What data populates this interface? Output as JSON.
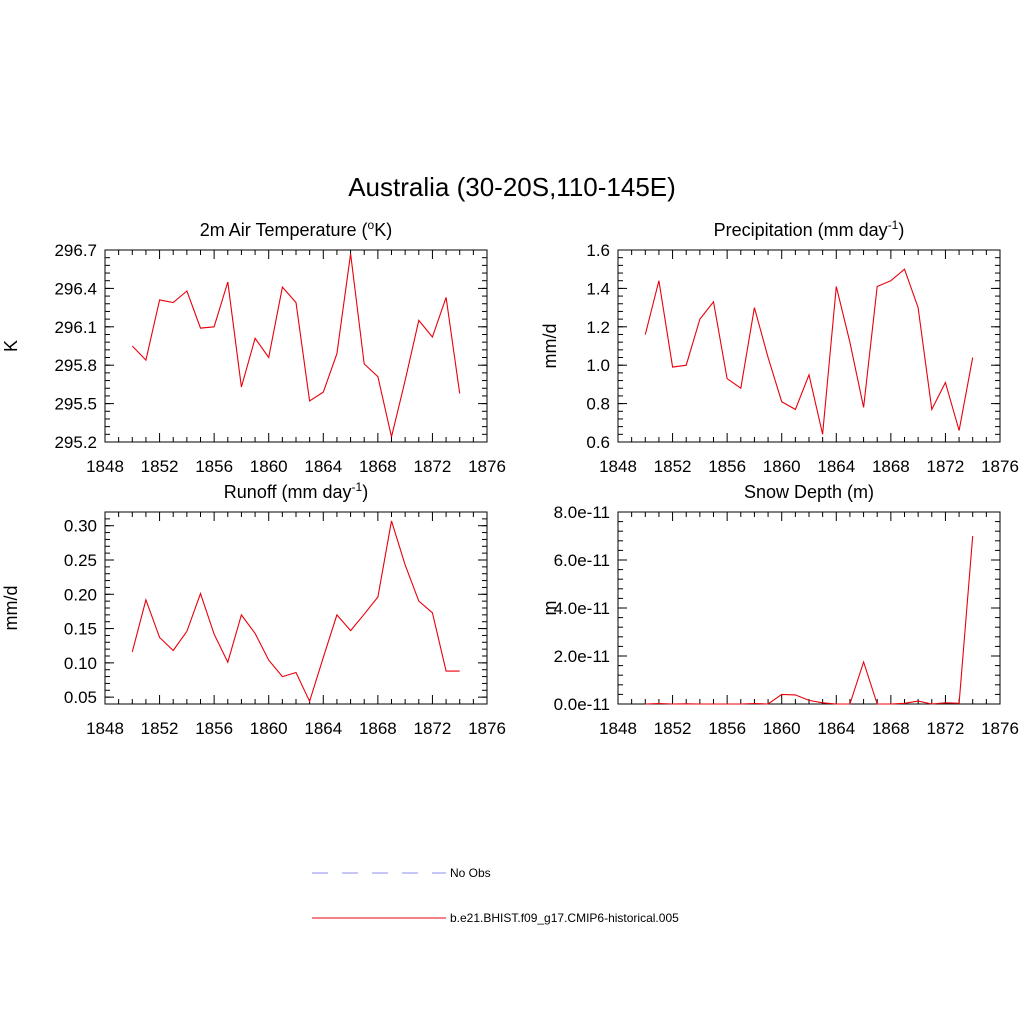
{
  "figure_title": "Australia (30-20S,110-145E)",
  "colors": {
    "model": "#e8000b",
    "obs": "#8c8cf0",
    "axis": "#000000"
  },
  "legend": {
    "obs_label": "No Obs",
    "model_label": "b.e21.BHIST.f09_g17.CMIP6-historical.005"
  },
  "chart_data": [
    {
      "type": "line",
      "title": "2m Air Temperature (",
      "title_sup": "o",
      "title_suffix": "K)",
      "ylabel": "K",
      "xlim": [
        1848,
        1876
      ],
      "ylim": [
        295.2,
        296.7
      ],
      "xticks": [
        "1848",
        "1852",
        "1856",
        "1860",
        "1864",
        "1868",
        "1872",
        "1876"
      ],
      "yticks": [
        "295.2",
        "295.5",
        "295.8",
        "296.1",
        "296.4",
        "296.7"
      ],
      "series": [
        {
          "x": [
            1850,
            1851,
            1852,
            1853,
            1854,
            1855,
            1856,
            1857,
            1858,
            1859,
            1860,
            1861,
            1862,
            1863,
            1864,
            1865,
            1866,
            1867,
            1868,
            1869,
            1870,
            1871,
            1872,
            1873,
            1874
          ],
          "values": [
            295.95,
            295.84,
            296.31,
            296.29,
            296.38,
            296.09,
            296.1,
            296.45,
            295.63,
            296.01,
            295.86,
            296.41,
            296.29,
            295.52,
            295.59,
            295.89,
            296.67,
            295.81,
            295.71,
            295.24,
            295.68,
            296.15,
            296.02,
            296.33,
            295.58
          ]
        }
      ]
    },
    {
      "type": "line",
      "title": "Precipitation (mm day",
      "title_sup": "-1",
      "title_suffix": ")",
      "ylabel": "mm/d",
      "xlim": [
        1848,
        1876
      ],
      "ylim": [
        0.6,
        1.6
      ],
      "xticks": [
        "1848",
        "1852",
        "1856",
        "1860",
        "1864",
        "1868",
        "1872",
        "1876"
      ],
      "yticks": [
        "0.6",
        "0.8",
        "1.0",
        "1.2",
        "1.4",
        "1.6"
      ],
      "series": [
        {
          "x": [
            1850,
            1851,
            1852,
            1853,
            1854,
            1855,
            1856,
            1857,
            1858,
            1859,
            1860,
            1861,
            1862,
            1863,
            1864,
            1865,
            1866,
            1867,
            1868,
            1869,
            1870,
            1871,
            1872,
            1873,
            1874
          ],
          "values": [
            1.16,
            1.44,
            0.99,
            1.0,
            1.24,
            1.33,
            0.93,
            0.88,
            1.3,
            1.04,
            0.81,
            0.77,
            0.95,
            0.64,
            1.41,
            1.12,
            0.78,
            1.41,
            1.44,
            1.5,
            1.3,
            0.77,
            0.91,
            0.66,
            1.04
          ]
        }
      ]
    },
    {
      "type": "line",
      "title": "Runoff (mm day",
      "title_sup": "-1",
      "title_suffix": ")",
      "ylabel": "mm/d",
      "xlim": [
        1848,
        1876
      ],
      "ylim": [
        0.04,
        0.32
      ],
      "xticks": [
        "1848",
        "1852",
        "1856",
        "1860",
        "1864",
        "1868",
        "1872",
        "1876"
      ],
      "yticks": [
        "0.05",
        "0.10",
        "0.15",
        "0.20",
        "0.25",
        "0.30"
      ],
      "ytick_values": [
        0.05,
        0.1,
        0.15,
        0.2,
        0.25,
        0.3
      ],
      "series": [
        {
          "x": [
            1850,
            1851,
            1852,
            1853,
            1854,
            1855,
            1856,
            1857,
            1858,
            1859,
            1860,
            1861,
            1862,
            1863,
            1864,
            1865,
            1866,
            1867,
            1868,
            1869,
            1870,
            1871,
            1872,
            1873,
            1874
          ],
          "values": [
            0.116,
            0.192,
            0.137,
            0.118,
            0.146,
            0.201,
            0.142,
            0.101,
            0.17,
            0.143,
            0.104,
            0.08,
            0.086,
            0.044,
            0.108,
            0.17,
            0.147,
            0.171,
            0.196,
            0.307,
            0.243,
            0.19,
            0.173,
            0.088,
            0.088
          ]
        }
      ]
    },
    {
      "type": "line",
      "title": "Snow Depth (m)",
      "title_sup": "",
      "title_suffix": "",
      "ylabel": "m",
      "xlim": [
        1848,
        1876
      ],
      "ylim": [
        0,
        8e-11
      ],
      "xticks": [
        "1848",
        "1852",
        "1856",
        "1860",
        "1864",
        "1868",
        "1872",
        "1876"
      ],
      "yticks": [
        "0.0e-11",
        "2.0e-11",
        "4.0e-11",
        "6.0e-11",
        "8.0e-11"
      ],
      "series": [
        {
          "x": [
            1850,
            1851,
            1852,
            1853,
            1854,
            1855,
            1856,
            1857,
            1858,
            1859,
            1860,
            1861,
            1862,
            1863,
            1864,
            1865,
            1866,
            1867,
            1868,
            1869,
            1870,
            1871,
            1872,
            1873,
            1874
          ],
          "values": [
            0,
            2e-13,
            0,
            1e-13,
            0,
            0,
            0,
            0,
            2e-13,
            0,
            4e-12,
            3.8e-12,
            1.5e-12,
            5e-13,
            0,
            0,
            1.75e-11,
            0,
            0,
            3e-13,
            1.2e-12,
            0,
            5e-13,
            3e-13,
            7e-11
          ]
        }
      ]
    }
  ]
}
